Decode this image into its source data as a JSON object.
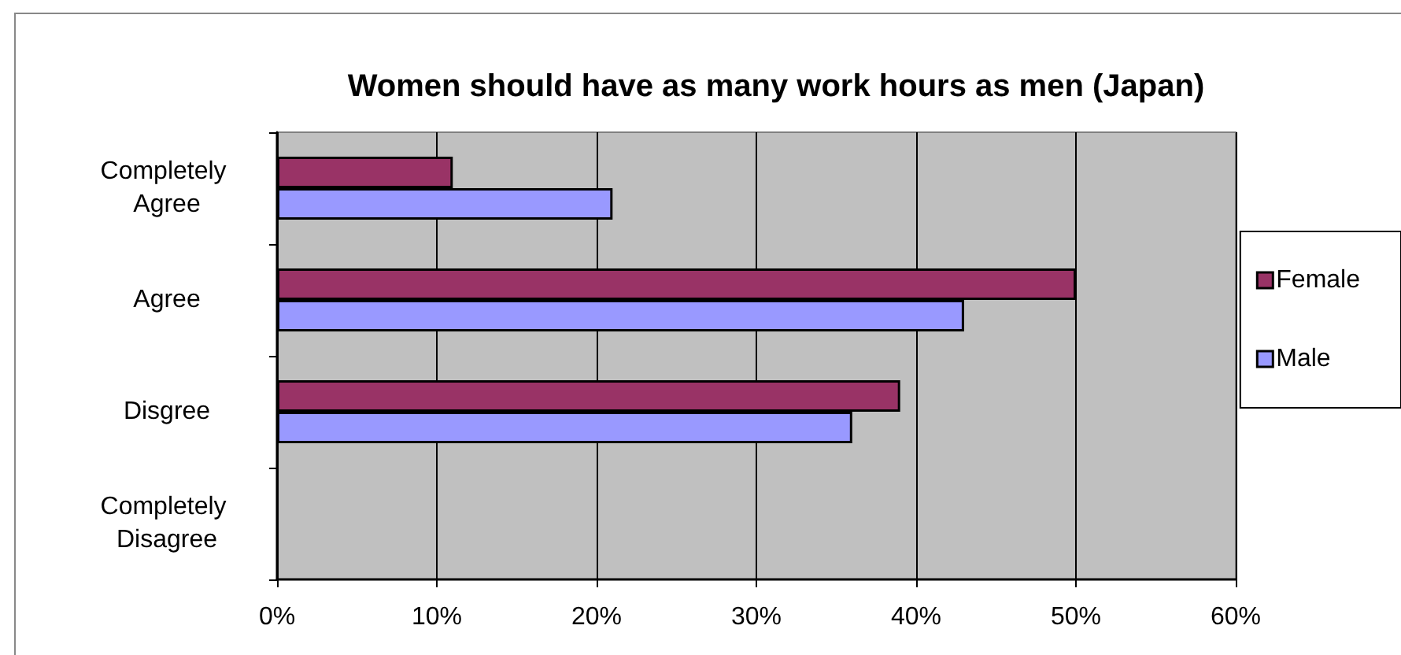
{
  "chart_data": {
    "type": "bar",
    "orientation": "horizontal",
    "title": "Women should have as many work hours as men (Japan)",
    "categories": [
      "Completely Agree",
      "Agree",
      "Disgree",
      "Completely Disagree"
    ],
    "series": [
      {
        "name": "Female",
        "color": "#993366",
        "values": [
          11,
          50,
          39,
          null
        ]
      },
      {
        "name": "Male",
        "color": "#9999ff",
        "values": [
          21,
          43,
          36,
          null
        ]
      }
    ],
    "xlim": [
      0,
      60
    ],
    "xticks": [
      {
        "value": 0,
        "label": "0%"
      },
      {
        "value": 10,
        "label": "10%"
      },
      {
        "value": 20,
        "label": "20%"
      },
      {
        "value": 30,
        "label": "30%"
      },
      {
        "value": 40,
        "label": "40%"
      },
      {
        "value": 50,
        "label": "50%"
      },
      {
        "value": 60,
        "label": "60%"
      }
    ],
    "grid": "x",
    "legend": "right"
  }
}
